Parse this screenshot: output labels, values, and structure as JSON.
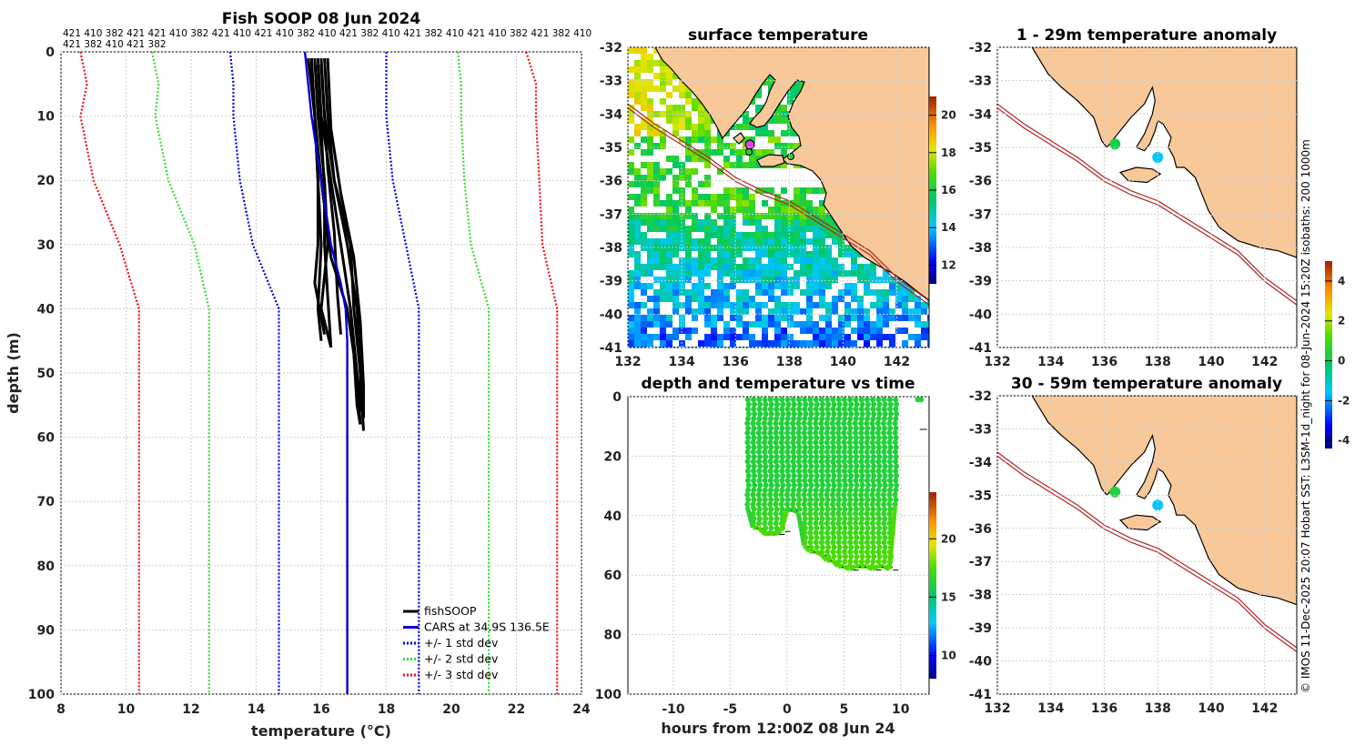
{
  "chart_data": [
    {
      "type": "line",
      "id": "profile",
      "title": "Fish SOOP 08 Jun 2024",
      "xlabel": "temperature (°C)",
      "ylabel": "depth (m)",
      "xlim": [
        8,
        24
      ],
      "ylim": [
        0,
        100
      ],
      "xticks": [
        "8",
        "10",
        "12",
        "14",
        "16",
        "18",
        "20",
        "22",
        "24"
      ],
      "yticks": [
        "0",
        "10",
        "20",
        "30",
        "40",
        "50",
        "60",
        "70",
        "80",
        "90",
        "100"
      ],
      "top_labels": [
        "421 410 382 421 421 410 382 421 410 421 410 382 410 421 382 410 421 382 410 421 410 382 421 382 410",
        "421 382 410 421 382"
      ],
      "legend": [
        {
          "label": "fishSOOP",
          "color": "#000000",
          "style": "solid"
        },
        {
          "label": "CARS at 34.9S 136.5E",
          "color": "#0000dd",
          "style": "solid"
        },
        {
          "label": "+/- 1 std dev",
          "color": "#0000dd",
          "style": "dotted"
        },
        {
          "label": "+/- 2 std dev",
          "color": "#33dd33",
          "style": "dotted"
        },
        {
          "label": "+/- 3 std dev",
          "color": "#ee1111",
          "style": "dotted"
        }
      ],
      "series": [
        {
          "name": "CARS mean",
          "color": "#0000dd",
          "depth": [
            0,
            10,
            20,
            30,
            36,
            40,
            45,
            100
          ],
          "temp": [
            15.5,
            15.7,
            16.0,
            16.3,
            16.6,
            16.75,
            16.8,
            16.8
          ]
        },
        {
          "name": "-1 std",
          "color": "#0000dd",
          "depth": [
            0,
            5,
            10,
            20,
            30,
            40,
            100
          ],
          "temp": [
            13.2,
            13.3,
            13.3,
            13.5,
            13.9,
            14.7,
            14.7
          ]
        },
        {
          "name": "+1 std",
          "color": "#0000dd",
          "depth": [
            0,
            5,
            10,
            20,
            30,
            40,
            100
          ],
          "temp": [
            18.0,
            18.0,
            18.0,
            18.2,
            18.6,
            19.0,
            19.0
          ]
        },
        {
          "name": "-2 std",
          "color": "#33dd33",
          "depth": [
            0,
            5,
            10,
            20,
            30,
            40,
            100
          ],
          "temp": [
            10.8,
            11.0,
            10.9,
            11.3,
            12.1,
            12.55,
            12.55
          ]
        },
        {
          "name": "+2 std",
          "color": "#33dd33",
          "depth": [
            0,
            5,
            10,
            20,
            30,
            40,
            100
          ],
          "temp": [
            20.2,
            20.3,
            20.3,
            20.4,
            20.6,
            21.15,
            21.15
          ]
        },
        {
          "name": "-3 std",
          "color": "#ee1111",
          "depth": [
            0,
            5,
            10,
            20,
            30,
            40,
            100
          ],
          "temp": [
            8.6,
            8.8,
            8.6,
            9.0,
            9.8,
            10.4,
            10.4
          ]
        },
        {
          "name": "+3 std",
          "color": "#ee1111",
          "depth": [
            0,
            5,
            10,
            20,
            30,
            40,
            100
          ],
          "temp": [
            22.3,
            22.6,
            22.6,
            22.7,
            22.8,
            23.25,
            23.25
          ]
        }
      ],
      "fishsoop_profiles": [
        {
          "depth": [
            1,
            10,
            20,
            30,
            40,
            45
          ],
          "temp": [
            15.6,
            15.8,
            15.9,
            16.0,
            15.9,
            16.0
          ]
        },
        {
          "depth": [
            1,
            10,
            20,
            30,
            40,
            46
          ],
          "temp": [
            15.8,
            15.9,
            16.1,
            16.2,
            16.0,
            16.3
          ]
        },
        {
          "depth": [
            1,
            10,
            18,
            28,
            38,
            44
          ],
          "temp": [
            16.0,
            16.1,
            16.2,
            16.4,
            16.5,
            16.6
          ]
        },
        {
          "depth": [
            1,
            10,
            20,
            32,
            40,
            47,
            55,
            58
          ],
          "temp": [
            15.7,
            15.8,
            16.0,
            16.3,
            16.8,
            17.0,
            17.1,
            17.2
          ]
        },
        {
          "depth": [
            1,
            10,
            20,
            30,
            40,
            50,
            58
          ],
          "temp": [
            15.9,
            16.0,
            16.3,
            16.6,
            16.9,
            17.1,
            17.2
          ]
        },
        {
          "depth": [
            1,
            10,
            20,
            30,
            40,
            50,
            59
          ],
          "temp": [
            16.1,
            16.2,
            16.4,
            16.8,
            17.1,
            17.2,
            17.3
          ]
        },
        {
          "depth": [
            1,
            12,
            22,
            32,
            42,
            52,
            57
          ],
          "temp": [
            16.2,
            16.3,
            16.6,
            17.0,
            17.2,
            17.3,
            17.3
          ]
        },
        {
          "depth": [
            2,
            12,
            22,
            30,
            38,
            46
          ],
          "temp": [
            15.9,
            16.0,
            16.1,
            16.1,
            16.2,
            16.3
          ]
        },
        {
          "depth": [
            1,
            10,
            20,
            30,
            36,
            44
          ],
          "temp": [
            15.7,
            15.8,
            15.9,
            15.9,
            15.8,
            16.1
          ]
        },
        {
          "depth": [
            2,
            10,
            20,
            30,
            40,
            50,
            56
          ],
          "temp": [
            16.0,
            16.1,
            16.4,
            16.9,
            17.0,
            17.2,
            17.2
          ]
        }
      ]
    },
    {
      "type": "heatmap",
      "id": "sst_map",
      "title": "surface temperature",
      "xticks": [
        "132",
        "134",
        "136",
        "138",
        "140",
        "142"
      ],
      "yticks": [
        "-32",
        "-33",
        "-34",
        "-35",
        "-36",
        "-37",
        "-38",
        "-39",
        "-40",
        "-41"
      ],
      "xlim": [
        132,
        143.2
      ],
      "ylim": [
        -41,
        -32
      ],
      "colorbar_ticks": [
        "12",
        "14",
        "16",
        "18",
        "20"
      ],
      "colorbar_range": [
        11,
        21
      ]
    },
    {
      "type": "scatter",
      "id": "depth_time",
      "title": "depth and temperature vs time",
      "xlabel": "hours from 12:00Z 08 Jun 24",
      "xticks": [
        "-10",
        "-5",
        "0",
        "5",
        "10"
      ],
      "yticks": [
        "0",
        "20",
        "40",
        "60",
        "80",
        "100"
      ],
      "xlim": [
        -14,
        12.5
      ],
      "ylim": [
        0,
        100
      ],
      "colorbar_ticks": [
        "10",
        "15",
        "20"
      ],
      "colorbar_range": [
        8,
        24
      ],
      "cast_times": [
        -3.5,
        -3.0,
        -2.5,
        -2.0,
        -1.5,
        -1.0,
        -0.5,
        0.0,
        0.5,
        1.0,
        1.5,
        2.0,
        2.5,
        3.0,
        3.5,
        4.0,
        4.5,
        5.0,
        5.5,
        6.0,
        6.5,
        7.0,
        7.5,
        8.0,
        8.5,
        9.0,
        9.5
      ],
      "cast_bottoms": [
        37,
        44,
        44,
        46,
        46,
        46,
        45,
        38,
        38,
        39,
        50,
        52,
        52,
        53,
        55,
        55,
        57,
        57,
        58,
        57,
        57,
        57,
        58,
        57,
        57,
        58,
        37
      ],
      "surface_points": [
        {
          "t": 11.5,
          "d": 1
        },
        {
          "t": 11.8,
          "d": 1
        }
      ],
      "bottom_markers": [
        {
          "t": 12.0,
          "d": 11
        }
      ]
    },
    {
      "type": "heatmap",
      "id": "anom_1_29",
      "title": "1 - 29m temperature anomaly",
      "xticks": [
        "132",
        "134",
        "136",
        "138",
        "140",
        "142"
      ],
      "yticks": [
        "-32",
        "-33",
        "-34",
        "-35",
        "-36",
        "-37",
        "-38",
        "-39",
        "-40",
        "-41"
      ],
      "xlim": [
        132,
        143.2
      ],
      "ylim": [
        -41,
        -32
      ],
      "anomaly_spots": [
        {
          "lon": 136.4,
          "lat": -34.9,
          "value": 0.2
        },
        {
          "lon": 138.0,
          "lat": -35.3,
          "value": -1.6
        }
      ]
    },
    {
      "type": "heatmap",
      "id": "anom_30_59",
      "title": "30 - 59m temperature anomaly",
      "xticks": [
        "132",
        "134",
        "136",
        "138",
        "140",
        "142"
      ],
      "yticks": [
        "-32",
        "-33",
        "-34",
        "-35",
        "-36",
        "-37",
        "-38",
        "-39",
        "-40",
        "-41"
      ],
      "xlim": [
        132,
        143.2
      ],
      "ylim": [
        -41,
        -32
      ],
      "anomaly_spots": [
        {
          "lon": 136.4,
          "lat": -34.9,
          "value": 0.4
        },
        {
          "lon": 138.0,
          "lat": -35.3,
          "value": -1.6
        }
      ],
      "colorbar_ticks": [
        "-4",
        "-2",
        "0",
        "2",
        "4"
      ],
      "colorbar_range": [
        -4.4,
        5
      ]
    }
  ],
  "credit": "© IMOS 11-Dec-2025 20:07 Hobart SST: L3SM-1d_night for 08-Jun-2024 15:20Z isobaths: 200 1000m"
}
